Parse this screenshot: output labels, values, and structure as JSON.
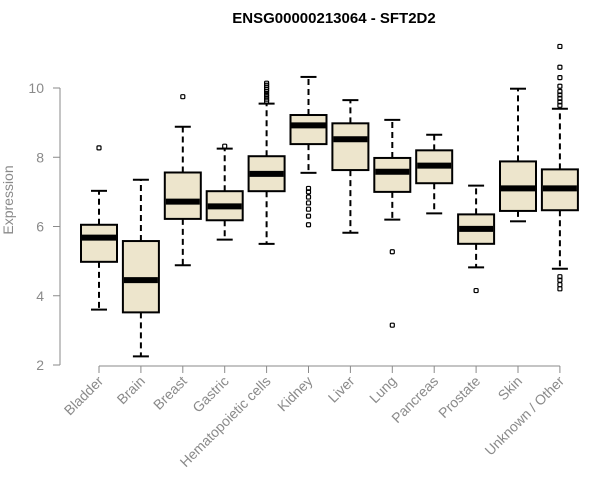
{
  "chart_data": {
    "type": "boxplot",
    "title": "ENSG00000213064 - SFT2D2",
    "xlabel": "",
    "ylabel": "Expression",
    "ylim": [
      2,
      11.3
    ],
    "yticks": [
      2,
      4,
      6,
      8,
      10
    ],
    "box_fill": "#ede5cc",
    "categories": [
      "Bladder",
      "Brain",
      "Breast",
      "Gastric",
      "Hematopoietic cells",
      "Kidney",
      "Liver",
      "Lung",
      "Pancreas",
      "Prostate",
      "Skin",
      "Unknown / Other"
    ],
    "series": [
      {
        "name": "Bladder",
        "whisker_low": 3.6,
        "q1": 4.98,
        "median": 5.68,
        "q3": 6.05,
        "whisker_high": 7.03,
        "outliers": [
          8.27
        ]
      },
      {
        "name": "Brain",
        "whisker_low": 2.25,
        "q1": 3.52,
        "median": 4.45,
        "q3": 5.58,
        "whisker_high": 7.35,
        "outliers": []
      },
      {
        "name": "Breast",
        "whisker_low": 4.88,
        "q1": 6.22,
        "median": 6.72,
        "q3": 7.56,
        "whisker_high": 8.88,
        "outliers": [
          9.75
        ]
      },
      {
        "name": "Gastric",
        "whisker_low": 5.62,
        "q1": 6.18,
        "median": 6.58,
        "q3": 7.02,
        "whisker_high": 8.25,
        "outliers": [
          8.32
        ]
      },
      {
        "name": "Hematopoietic cells",
        "whisker_low": 5.5,
        "q1": 7.02,
        "median": 7.52,
        "q3": 8.03,
        "whisker_high": 9.55,
        "outliers": [
          9.62,
          9.68,
          9.75,
          9.82,
          9.9,
          9.96,
          10.02,
          10.08,
          10.14
        ]
      },
      {
        "name": "Kidney",
        "whisker_low": 7.55,
        "q1": 8.38,
        "median": 8.92,
        "q3": 9.22,
        "whisker_high": 10.32,
        "outliers": [
          6.05,
          6.3,
          6.5,
          6.68,
          6.85,
          7.0,
          7.1
        ]
      },
      {
        "name": "Liver",
        "whisker_low": 5.82,
        "q1": 7.63,
        "median": 8.52,
        "q3": 8.98,
        "whisker_high": 9.65,
        "outliers": []
      },
      {
        "name": "Lung",
        "whisker_low": 6.2,
        "q1": 7.0,
        "median": 7.58,
        "q3": 7.98,
        "whisker_high": 9.08,
        "outliers": [
          3.15,
          5.27
        ]
      },
      {
        "name": "Pancreas",
        "whisker_low": 6.38,
        "q1": 7.25,
        "median": 7.76,
        "q3": 8.2,
        "whisker_high": 8.65,
        "outliers": []
      },
      {
        "name": "Prostate",
        "whisker_low": 4.82,
        "q1": 5.5,
        "median": 5.93,
        "q3": 6.35,
        "whisker_high": 7.18,
        "outliers": [
          4.15
        ]
      },
      {
        "name": "Skin",
        "whisker_low": 6.15,
        "q1": 6.45,
        "median": 7.1,
        "q3": 7.88,
        "whisker_high": 9.98,
        "outliers": []
      },
      {
        "name": "Unknown / Other",
        "whisker_low": 4.78,
        "q1": 6.47,
        "median": 7.1,
        "q3": 7.65,
        "whisker_high": 9.4,
        "outliers": [
          4.2,
          4.32,
          4.45,
          4.55,
          9.5,
          9.6,
          9.7,
          9.8,
          9.9,
          10.05,
          10.3,
          10.6,
          11.2
        ]
      }
    ]
  }
}
